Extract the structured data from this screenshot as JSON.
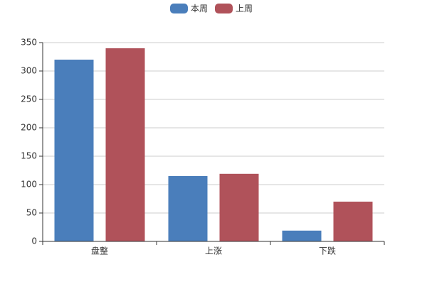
{
  "chart_data": {
    "type": "bar",
    "categories": [
      "盘整",
      "上涨",
      "下跌"
    ],
    "series": [
      {
        "name": "本周",
        "color": "#4a7ebb",
        "values": [
          320,
          115,
          19
        ]
      },
      {
        "name": "上周",
        "color": "#b0525a",
        "values": [
          340,
          119,
          70
        ]
      }
    ],
    "ylim": [
      0,
      350
    ],
    "yticks": [
      0,
      50,
      100,
      150,
      200,
      250,
      300,
      350
    ],
    "grid": true
  }
}
